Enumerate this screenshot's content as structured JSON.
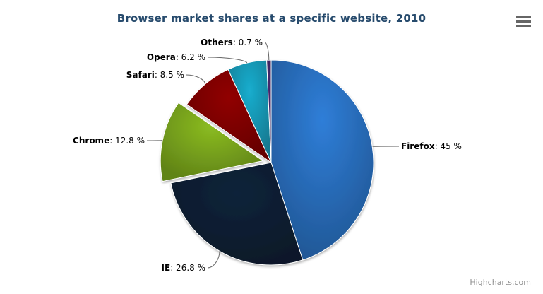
{
  "title": "Browser market shares at a specific website, 2010",
  "credit": {
    "text": "Highcharts.com"
  },
  "menu": {
    "icon": "hamburger-menu-icon",
    "bar_color": "#666666"
  },
  "style": {
    "title_color": "#274b6d",
    "label_color": "#000000",
    "connector_color": "#666666",
    "slice_border_color": "#ffffff"
  },
  "chart_data": {
    "type": "pie",
    "title": "Browser market shares at a specific website, 2010",
    "legend": "none",
    "label_separator": ": ",
    "value_suffix": " %",
    "start_angle_deg": 0,
    "direction": "clockwise",
    "points": [
      {
        "name": "Firefox",
        "value": 45,
        "color": "#2f7ed8",
        "sliced": false
      },
      {
        "name": "IE",
        "value": 26.8,
        "color": "#0d233a",
        "sliced": false
      },
      {
        "name": "Chrome",
        "value": 12.8,
        "color": "#8bbc21",
        "sliced": true
      },
      {
        "name": "Safari",
        "value": 8.5,
        "color": "#910000",
        "sliced": false
      },
      {
        "name": "Opera",
        "value": 6.2,
        "color": "#1aadce",
        "sliced": false
      },
      {
        "name": "Others",
        "value": 0.7,
        "color": "#492970",
        "sliced": false
      }
    ]
  }
}
